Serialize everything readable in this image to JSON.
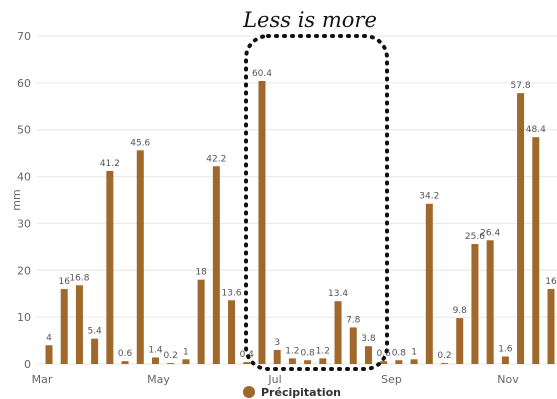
{
  "chart_data": {
    "type": "bar",
    "title": "Less is more",
    "ylabel": "mm",
    "ylim": [
      0,
      70
    ],
    "yticks": [
      0,
      10,
      20,
      30,
      40,
      50,
      60,
      70
    ],
    "xticks": [
      "Mar",
      "May",
      "Jul",
      "Sep",
      "Nov"
    ],
    "grid": true,
    "legend_position": "bottom-center",
    "bar_color": "#a0682a",
    "series": [
      {
        "name": "Précipitation",
        "values": [
          {
            "label": "4",
            "value": 4
          },
          {
            "label": "16",
            "value": 16
          },
          {
            "label": "16.8",
            "value": 16.8
          },
          {
            "label": "5.4",
            "value": 5.4
          },
          {
            "label": "41.2",
            "value": 41.2
          },
          {
            "label": "0.6",
            "value": 0.6
          },
          {
            "label": "45.6",
            "value": 45.6
          },
          {
            "label": "1.4",
            "value": 1.4
          },
          {
            "label": "0.2",
            "value": 0.2
          },
          {
            "label": "1",
            "value": 1
          },
          {
            "label": "18",
            "value": 18
          },
          {
            "label": "42.2",
            "value": 42.2
          },
          {
            "label": "13.6",
            "value": 13.6
          },
          {
            "label": "0.4",
            "value": 0.4
          },
          {
            "label": "60.4",
            "value": 60.4
          },
          {
            "label": "3",
            "value": 3
          },
          {
            "label": "1.2",
            "value": 1.2
          },
          {
            "label": "0.8",
            "value": 0.8
          },
          {
            "label": "1.2",
            "value": 1.2
          },
          {
            "label": "13.4",
            "value": 13.4
          },
          {
            "label": "7.8",
            "value": 7.8
          },
          {
            "label": "3.8",
            "value": 3.8
          },
          {
            "label": "0.6",
            "value": 0.6
          },
          {
            "label": "0.8",
            "value": 0.8
          },
          {
            "label": "1",
            "value": 1
          },
          {
            "label": "34.2",
            "value": 34.2
          },
          {
            "label": "0.2",
            "value": 0.2
          },
          {
            "label": "9.8",
            "value": 9.8
          },
          {
            "label": "25.6",
            "value": 25.6
          },
          {
            "label": "26.4",
            "value": 26.4
          },
          {
            "label": "1.6",
            "value": 1.6
          },
          {
            "label": "57.8",
            "value": 57.8
          },
          {
            "label": "48.4",
            "value": 48.4
          },
          {
            "label": "16",
            "value": 16
          }
        ]
      }
    ],
    "annotation": {
      "type": "dotted-rounded-rectangle",
      "around": "Jul"
    }
  }
}
